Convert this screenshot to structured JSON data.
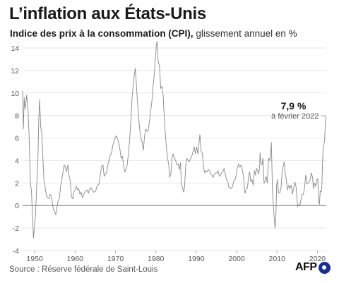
{
  "title": "L’inflation aux États-Unis",
  "subtitle": {
    "bold": "Indice des prix à la consommation (CPI),",
    "normal": " glissement annuel en %"
  },
  "source": "Source : Réserve fédérale de Saint-Louis",
  "logo": "AFP",
  "colors": {
    "line": "#888888",
    "grid": "#dddddd",
    "zero_line": "#666666",
    "axis_text": "#555555",
    "logo_blue": "#1b2f8f"
  },
  "chart_data": {
    "type": "line",
    "title": "L’inflation aux États-Unis",
    "subtitle": "Indice des prix à la consommation (CPI), glissement annuel en %",
    "xlabel": "",
    "ylabel": "",
    "xlim": [
      1947,
      2022.2
    ],
    "ylim": [
      -4,
      14.5
    ],
    "x_ticks": [
      1950,
      1960,
      1970,
      1980,
      1990,
      2000,
      2010,
      2020
    ],
    "y_ticks": [
      -4,
      -2,
      0,
      2,
      4,
      6,
      8,
      10,
      12,
      14
    ],
    "grid": true,
    "annotation": {
      "value": "7,9 %",
      "note": "à février 2022",
      "x": 2022.1,
      "y": 7.9
    },
    "series": [
      {
        "name": "",
        "points": [
          [
            1947.0,
            10.2
          ],
          [
            1947.2,
            6.8
          ],
          [
            1947.4,
            9.6
          ],
          [
            1947.6,
            8.6
          ],
          [
            1947.8,
            9.0
          ],
          [
            1948.0,
            9.8
          ],
          [
            1948.3,
            8.8
          ],
          [
            1948.6,
            6.4
          ],
          [
            1948.9,
            2.2
          ],
          [
            1949.2,
            1.2
          ],
          [
            1949.5,
            -1.4
          ],
          [
            1949.7,
            -2.9
          ],
          [
            1950.0,
            -1.5
          ],
          [
            1950.2,
            -0.8
          ],
          [
            1950.5,
            1.8
          ],
          [
            1950.8,
            4.2
          ],
          [
            1951.0,
            7.6
          ],
          [
            1951.2,
            9.4
          ],
          [
            1951.5,
            7.0
          ],
          [
            1951.8,
            6.2
          ],
          [
            1952.0,
            4.4
          ],
          [
            1952.3,
            2.2
          ],
          [
            1952.6,
            1.6
          ],
          [
            1952.9,
            0.9
          ],
          [
            1953.2,
            0.7
          ],
          [
            1953.5,
            0.6
          ],
          [
            1953.8,
            1.0
          ],
          [
            1954.0,
            0.9
          ],
          [
            1954.3,
            0.4
          ],
          [
            1954.6,
            -0.3
          ],
          [
            1954.9,
            -0.5
          ],
          [
            1955.2,
            -0.8
          ],
          [
            1955.5,
            -0.2
          ],
          [
            1955.8,
            0.4
          ],
          [
            1956.1,
            0.6
          ],
          [
            1956.4,
            1.7
          ],
          [
            1956.7,
            2.3
          ],
          [
            1957.0,
            3.0
          ],
          [
            1957.3,
            3.6
          ],
          [
            1957.6,
            3.4
          ],
          [
            1957.9,
            3.0
          ],
          [
            1958.2,
            3.6
          ],
          [
            1958.5,
            2.6
          ],
          [
            1958.8,
            2.2
          ],
          [
            1959.1,
            0.8
          ],
          [
            1959.4,
            0.6
          ],
          [
            1959.7,
            1.2
          ],
          [
            1960.0,
            1.4
          ],
          [
            1960.3,
            1.7
          ],
          [
            1960.6,
            1.4
          ],
          [
            1960.9,
            1.5
          ],
          [
            1961.2,
            1.0
          ],
          [
            1961.5,
            1.2
          ],
          [
            1961.8,
            0.7
          ],
          [
            1962.1,
            0.9
          ],
          [
            1962.4,
            1.2
          ],
          [
            1962.7,
            1.3
          ],
          [
            1963.0,
            1.4
          ],
          [
            1963.3,
            1.1
          ],
          [
            1963.6,
            1.5
          ],
          [
            1963.9,
            1.6
          ],
          [
            1964.2,
            1.4
          ],
          [
            1964.5,
            1.2
          ],
          [
            1964.8,
            1.2
          ],
          [
            1965.1,
            1.3
          ],
          [
            1965.4,
            1.7
          ],
          [
            1965.7,
            1.8
          ],
          [
            1966.0,
            2.0
          ],
          [
            1966.3,
            2.9
          ],
          [
            1966.6,
            3.5
          ],
          [
            1966.9,
            3.6
          ],
          [
            1967.2,
            2.6
          ],
          [
            1967.5,
            2.8
          ],
          [
            1967.8,
            2.9
          ],
          [
            1968.1,
            3.6
          ],
          [
            1968.4,
            4.0
          ],
          [
            1968.7,
            4.5
          ],
          [
            1969.0,
            4.6
          ],
          [
            1969.3,
            5.3
          ],
          [
            1969.6,
            5.6
          ],
          [
            1969.9,
            6.0
          ],
          [
            1970.2,
            6.2
          ],
          [
            1970.5,
            5.9
          ],
          [
            1970.8,
            5.6
          ],
          [
            1971.1,
            5.0
          ],
          [
            1971.4,
            4.2
          ],
          [
            1971.7,
            4.4
          ],
          [
            1972.0,
            3.6
          ],
          [
            1972.3,
            3.0
          ],
          [
            1972.6,
            3.2
          ],
          [
            1972.9,
            3.6
          ],
          [
            1973.2,
            4.6
          ],
          [
            1973.5,
            5.8
          ],
          [
            1973.8,
            7.4
          ],
          [
            1974.1,
            9.6
          ],
          [
            1974.4,
            10.7
          ],
          [
            1974.7,
            11.7
          ],
          [
            1974.9,
            12.2
          ],
          [
            1975.1,
            11.2
          ],
          [
            1975.4,
            9.4
          ],
          [
            1975.7,
            8.0
          ],
          [
            1976.0,
            6.8
          ],
          [
            1976.3,
            6.0
          ],
          [
            1976.6,
            5.6
          ],
          [
            1976.9,
            4.9
          ],
          [
            1977.2,
            6.2
          ],
          [
            1977.5,
            6.8
          ],
          [
            1977.8,
            6.6
          ],
          [
            1978.1,
            6.6
          ],
          [
            1978.4,
            7.4
          ],
          [
            1978.7,
            8.4
          ],
          [
            1979.0,
            9.2
          ],
          [
            1979.3,
            10.6
          ],
          [
            1979.6,
            11.6
          ],
          [
            1979.9,
            13.2
          ],
          [
            1980.1,
            14.2
          ],
          [
            1980.3,
            14.6
          ],
          [
            1980.5,
            13.0
          ],
          [
            1980.7,
            12.6
          ],
          [
            1980.9,
            12.4
          ],
          [
            1981.2,
            10.4
          ],
          [
            1981.5,
            10.6
          ],
          [
            1981.8,
            9.8
          ],
          [
            1982.0,
            8.4
          ],
          [
            1982.3,
            6.6
          ],
          [
            1982.6,
            5.2
          ],
          [
            1982.9,
            4.2
          ],
          [
            1983.2,
            3.6
          ],
          [
            1983.4,
            2.5
          ],
          [
            1983.7,
            2.8
          ],
          [
            1984.0,
            4.2
          ],
          [
            1984.3,
            4.6
          ],
          [
            1984.6,
            4.2
          ],
          [
            1984.9,
            4.0
          ],
          [
            1985.2,
            3.6
          ],
          [
            1985.5,
            3.7
          ],
          [
            1985.8,
            3.2
          ],
          [
            1986.1,
            3.8
          ],
          [
            1986.3,
            2.0
          ],
          [
            1986.6,
            1.6
          ],
          [
            1986.9,
            1.2
          ],
          [
            1987.1,
            1.6
          ],
          [
            1987.4,
            3.6
          ],
          [
            1987.7,
            4.2
          ],
          [
            1988.0,
            4.0
          ],
          [
            1988.3,
            3.9
          ],
          [
            1988.6,
            4.2
          ],
          [
            1988.9,
            4.4
          ],
          [
            1989.2,
            4.8
          ],
          [
            1989.5,
            5.2
          ],
          [
            1989.8,
            4.6
          ],
          [
            1990.1,
            5.2
          ],
          [
            1990.4,
            4.6
          ],
          [
            1990.7,
            5.6
          ],
          [
            1990.9,
            6.3
          ],
          [
            1991.2,
            4.9
          ],
          [
            1991.5,
            4.6
          ],
          [
            1991.8,
            3.4
          ],
          [
            1992.1,
            2.9
          ],
          [
            1992.4,
            3.1
          ],
          [
            1992.7,
            3.0
          ],
          [
            1993.0,
            3.2
          ],
          [
            1993.3,
            3.1
          ],
          [
            1993.6,
            2.8
          ],
          [
            1993.9,
            2.7
          ],
          [
            1994.2,
            2.5
          ],
          [
            1994.5,
            2.8
          ],
          [
            1994.8,
            2.9
          ],
          [
            1995.1,
            2.9
          ],
          [
            1995.4,
            3.1
          ],
          [
            1995.7,
            2.6
          ],
          [
            1996.0,
            2.7
          ],
          [
            1996.3,
            2.9
          ],
          [
            1996.6,
            3.0
          ],
          [
            1996.9,
            3.3
          ],
          [
            1997.2,
            2.8
          ],
          [
            1997.5,
            2.3
          ],
          [
            1997.8,
            2.1
          ],
          [
            1998.1,
            1.6
          ],
          [
            1998.4,
            1.6
          ],
          [
            1998.7,
            1.5
          ],
          [
            1999.0,
            1.7
          ],
          [
            1999.3,
            2.2
          ],
          [
            1999.6,
            2.3
          ],
          [
            1999.9,
            2.7
          ],
          [
            2000.2,
            3.4
          ],
          [
            2000.5,
            3.7
          ],
          [
            2000.8,
            3.4
          ],
          [
            2001.1,
            3.6
          ],
          [
            2001.4,
            3.2
          ],
          [
            2001.7,
            2.6
          ],
          [
            2001.9,
            1.6
          ],
          [
            2002.1,
            1.1
          ],
          [
            2002.4,
            1.5
          ],
          [
            2002.7,
            1.6
          ],
          [
            2002.9,
            2.4
          ],
          [
            2003.2,
            3.0
          ],
          [
            2003.5,
            2.1
          ],
          [
            2003.8,
            2.3
          ],
          [
            2004.1,
            1.8
          ],
          [
            2004.4,
            3.1
          ],
          [
            2004.7,
            2.7
          ],
          [
            2004.9,
            3.3
          ],
          [
            2005.2,
            3.1
          ],
          [
            2005.5,
            2.8
          ],
          [
            2005.7,
            3.6
          ],
          [
            2005.8,
            4.7
          ],
          [
            2006.0,
            3.8
          ],
          [
            2006.3,
            3.6
          ],
          [
            2006.5,
            4.2
          ],
          [
            2006.8,
            2.0
          ],
          [
            2007.0,
            2.1
          ],
          [
            2007.3,
            2.6
          ],
          [
            2007.6,
            2.0
          ],
          [
            2007.9,
            4.2
          ],
          [
            2008.2,
            4.0
          ],
          [
            2008.5,
            5.0
          ],
          [
            2008.6,
            5.6
          ],
          [
            2008.9,
            1.1
          ],
          [
            2009.1,
            0.0
          ],
          [
            2009.3,
            -1.0
          ],
          [
            2009.5,
            -2.0
          ],
          [
            2009.7,
            -1.4
          ],
          [
            2009.9,
            1.8
          ],
          [
            2010.1,
            2.3
          ],
          [
            2010.4,
            1.1
          ],
          [
            2010.7,
            1.1
          ],
          [
            2011.0,
            1.6
          ],
          [
            2011.3,
            3.2
          ],
          [
            2011.6,
            3.6
          ],
          [
            2011.8,
            3.9
          ],
          [
            2012.0,
            2.9
          ],
          [
            2012.3,
            2.3
          ],
          [
            2012.6,
            1.4
          ],
          [
            2012.9,
            1.8
          ],
          [
            2013.2,
            1.5
          ],
          [
            2013.5,
            1.8
          ],
          [
            2013.8,
            1.0
          ],
          [
            2014.1,
            1.5
          ],
          [
            2014.4,
            2.1
          ],
          [
            2014.7,
            1.7
          ],
          [
            2014.9,
            0.8
          ],
          [
            2015.1,
            -0.1
          ],
          [
            2015.4,
            0.1
          ],
          [
            2015.7,
            0.0
          ],
          [
            2015.9,
            0.5
          ],
          [
            2016.2,
            1.0
          ],
          [
            2016.5,
            1.0
          ],
          [
            2016.8,
            1.5
          ],
          [
            2017.1,
            2.7
          ],
          [
            2017.4,
            1.9
          ],
          [
            2017.7,
            2.0
          ],
          [
            2017.9,
            2.1
          ],
          [
            2018.2,
            2.3
          ],
          [
            2018.5,
            2.9
          ],
          [
            2018.8,
            2.5
          ],
          [
            2019.0,
            1.5
          ],
          [
            2019.3,
            2.0
          ],
          [
            2019.6,
            1.7
          ],
          [
            2019.9,
            2.3
          ],
          [
            2020.1,
            2.4
          ],
          [
            2020.3,
            0.3
          ],
          [
            2020.5,
            0.1
          ],
          [
            2020.7,
            1.3
          ],
          [
            2020.9,
            1.2
          ],
          [
            2021.1,
            1.7
          ],
          [
            2021.3,
            4.2
          ],
          [
            2021.4,
            5.0
          ],
          [
            2021.6,
            5.4
          ],
          [
            2021.8,
            5.8
          ],
          [
            2021.9,
            6.8
          ],
          [
            2022.0,
            7.5
          ],
          [
            2022.1,
            7.9
          ]
        ]
      }
    ]
  }
}
